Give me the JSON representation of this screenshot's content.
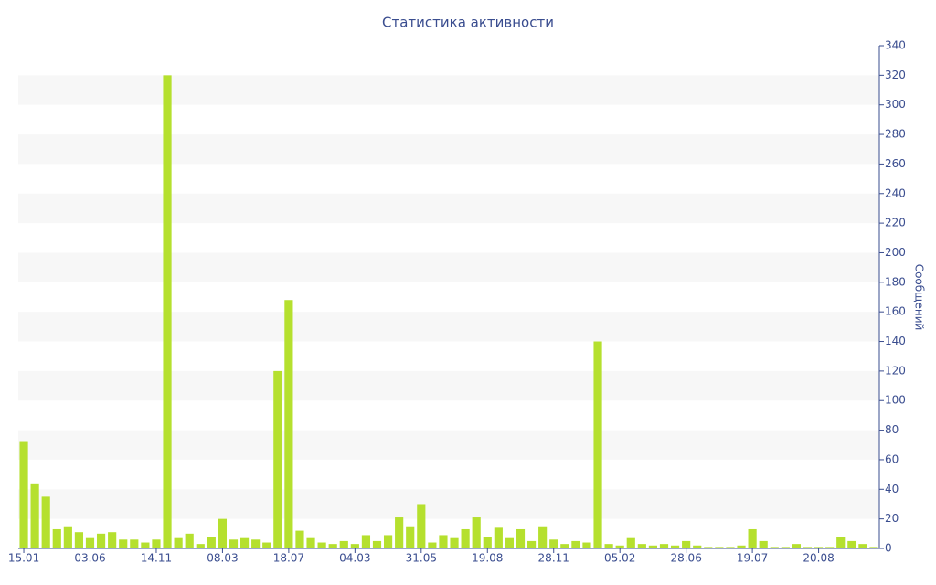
{
  "chart_data": {
    "type": "bar",
    "title": "Статистика активности",
    "y_label": "Сообщений",
    "categories": [
      "15.01",
      null,
      null,
      null,
      null,
      null,
      "03.06",
      null,
      null,
      null,
      null,
      null,
      "14.11",
      null,
      null,
      null,
      null,
      null,
      "08.03",
      null,
      null,
      null,
      null,
      null,
      "18.07",
      null,
      null,
      null,
      null,
      null,
      "04.03",
      null,
      null,
      null,
      null,
      null,
      "31.05",
      null,
      null,
      null,
      null,
      null,
      "19.08",
      null,
      null,
      null,
      null,
      null,
      "28.11",
      null,
      null,
      null,
      null,
      null,
      "05.02",
      null,
      null,
      null,
      null,
      null,
      "28.06",
      null,
      null,
      null,
      null,
      null,
      "19.07",
      null,
      null,
      null,
      null,
      null,
      "20.08",
      null,
      null,
      null,
      null,
      null
    ],
    "values": [
      72,
      44,
      35,
      13,
      15,
      11,
      7,
      10,
      11,
      6,
      6,
      4,
      6,
      320,
      7,
      10,
      3,
      8,
      20,
      6,
      7,
      6,
      4,
      120,
      168,
      12,
      7,
      4,
      3,
      5,
      3,
      9,
      5,
      9,
      21,
      15,
      30,
      4,
      9,
      7,
      13,
      21,
      8,
      14,
      7,
      13,
      5,
      15,
      6,
      3,
      5,
      4,
      140,
      3,
      2,
      7,
      3,
      2,
      3,
      2,
      5,
      2,
      1,
      1,
      1,
      2,
      13,
      5,
      1,
      1,
      3,
      1,
      1,
      1,
      8,
      5,
      3,
      1
    ],
    "color": "#b5e02e",
    "ylim": [
      0,
      340
    ],
    "yticks": [
      0,
      20,
      40,
      60,
      80,
      100,
      120,
      140,
      160,
      180,
      200,
      220,
      240,
      260,
      280,
      300,
      320,
      340
    ],
    "axis_side": "right",
    "grid_bands": true
  }
}
